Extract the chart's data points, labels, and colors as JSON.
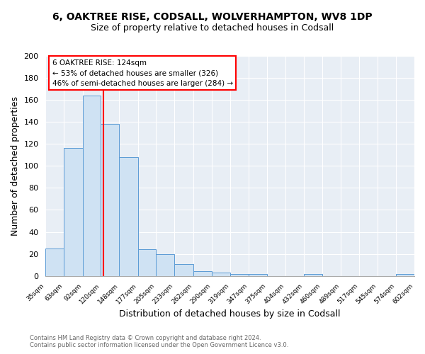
{
  "title_line1": "6, OAKTREE RISE, CODSALL, WOLVERHAMPTON, WV8 1DP",
  "title_line2": "Size of property relative to detached houses in Codsall",
  "xlabel": "Distribution of detached houses by size in Codsall",
  "ylabel": "Number of detached properties",
  "bin_labels": [
    "35sqm",
    "63sqm",
    "92sqm",
    "120sqm",
    "148sqm",
    "177sqm",
    "205sqm",
    "233sqm",
    "262sqm",
    "290sqm",
    "319sqm",
    "347sqm",
    "375sqm",
    "404sqm",
    "432sqm",
    "460sqm",
    "489sqm",
    "517sqm",
    "545sqm",
    "574sqm",
    "602sqm"
  ],
  "bin_edges": [
    35,
    63,
    92,
    120,
    148,
    177,
    205,
    233,
    262,
    290,
    319,
    347,
    375,
    404,
    432,
    460,
    489,
    517,
    545,
    574,
    602
  ],
  "bar_heights": [
    25,
    116,
    164,
    138,
    108,
    24,
    20,
    11,
    4,
    3,
    2,
    2,
    0,
    0,
    2,
    0,
    0,
    0,
    0,
    2
  ],
  "bar_color": "#cfe2f3",
  "bar_edge_color": "#5b9bd5",
  "red_line_x": 124,
  "annotation_title": "6 OAKTREE RISE: 124sqm",
  "annotation_line1": "← 53% of detached houses are smaller (326)",
  "annotation_line2": "46% of semi-detached houses are larger (284) →",
  "annotation_box_facecolor": "white",
  "annotation_box_edgecolor": "red",
  "ylim": [
    0,
    200
  ],
  "yticks": [
    0,
    20,
    40,
    60,
    80,
    100,
    120,
    140,
    160,
    180,
    200
  ],
  "footer1": "Contains HM Land Registry data © Crown copyright and database right 2024.",
  "footer2": "Contains public sector information licensed under the Open Government Licence v3.0.",
  "bg_color": "#ffffff",
  "plot_bg_color": "#e8eef5",
  "grid_color": "#ffffff",
  "title1_fontsize": 10,
  "title2_fontsize": 9
}
